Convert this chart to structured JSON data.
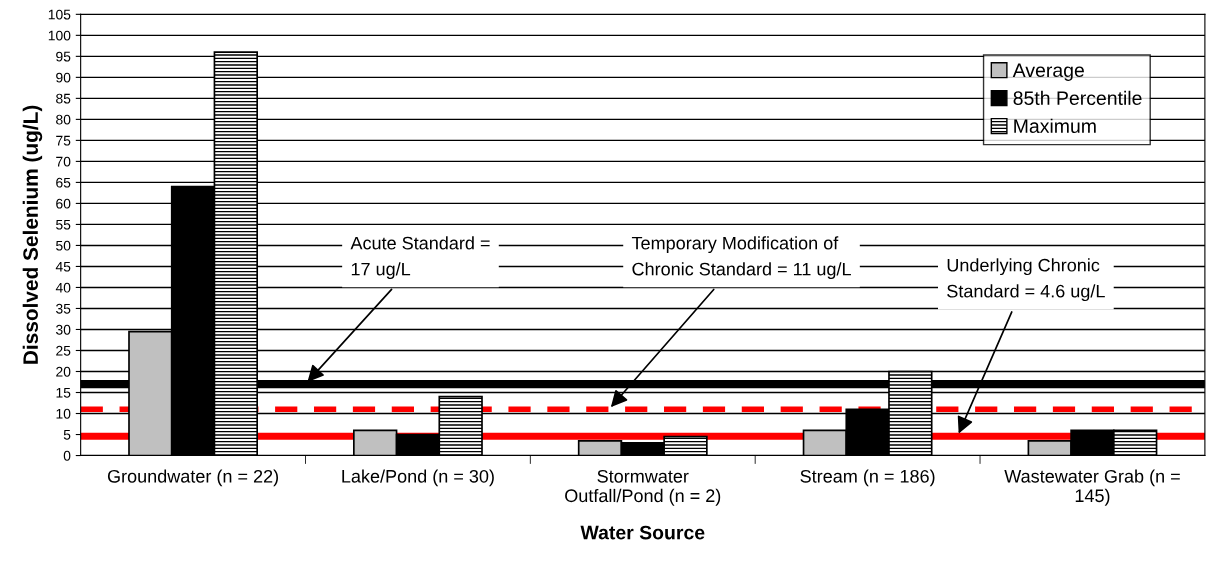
{
  "chart_data": {
    "type": "bar",
    "xlabel": "Water Source",
    "ylabel": "Dissolved Selenium (ug/L)",
    "categories": [
      "Groundwater (n = 22)",
      "Lake/Pond (n = 30)",
      "Stormwater\nOutfall/Pond (n = 2)",
      "Stream (n = 186)",
      "Wastewater Grab (n =\n145)"
    ],
    "series": [
      {
        "name": "Average",
        "color": "#c0c0c0",
        "values": [
          29.5,
          6,
          3.5,
          6,
          3.5
        ]
      },
      {
        "name": "85th Percentile",
        "color": "#000000",
        "values": [
          64,
          5,
          3,
          11,
          6
        ]
      },
      {
        "name": "Maximum",
        "color": "#000000",
        "values": [
          96,
          14,
          4.5,
          20,
          6
        ]
      }
    ],
    "ylim": [
      0,
      105
    ],
    "yticks": [
      0,
      5,
      10,
      15,
      20,
      25,
      30,
      35,
      40,
      45,
      50,
      55,
      60,
      65,
      70,
      75,
      80,
      85,
      90,
      95,
      100,
      105
    ],
    "grid": "y",
    "legend": "top right",
    "ref_lines": [
      {
        "axis": "y",
        "value": 17,
        "color": "#000000",
        "line_style": "solid",
        "label": "Acute Standard =\n17 ug/L"
      },
      {
        "axis": "y",
        "value": 11,
        "color": "#ff0000",
        "line_style": "dashed",
        "label": "Temporary Modification of\nChronic Standard = 11 ug/L"
      },
      {
        "axis": "y",
        "value": 4.6,
        "color": "#ff0000",
        "line_style": "solid",
        "label": "Underlying Chronic\nStandard = 4.6 ug/L"
      }
    ]
  }
}
